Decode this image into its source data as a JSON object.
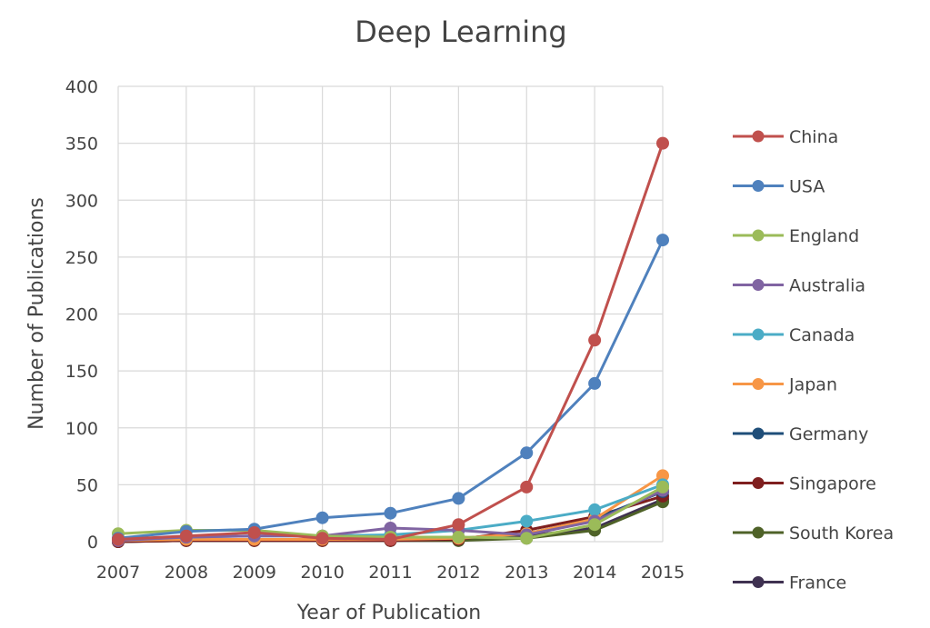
{
  "chart_data": {
    "type": "line",
    "title": "Deep Learning",
    "xlabel": "Year of Publication",
    "ylabel": "Number of Publications",
    "x": [
      "2007",
      "2008",
      "2009",
      "2010",
      "2011",
      "2012",
      "2013",
      "2014",
      "2015"
    ],
    "ylim": [
      0,
      400
    ],
    "yticks": [
      "0",
      "50",
      "100",
      "150",
      "200",
      "250",
      "300",
      "350",
      "400"
    ],
    "grid": true,
    "legend_position": "right",
    "series": [
      {
        "name": "China",
        "color": "#c0504d",
        "values": [
          2,
          5,
          8,
          3,
          2,
          15,
          48,
          177,
          350
        ]
      },
      {
        "name": "USA",
        "color": "#4f81bd",
        "values": [
          3,
          9,
          11,
          21,
          25,
          38,
          78,
          139,
          265
        ]
      },
      {
        "name": "England",
        "color": "#9bbb59",
        "values": [
          7,
          10,
          10,
          5,
          4,
          4,
          3,
          15,
          48
        ]
      },
      {
        "name": "Australia",
        "color": "#8064a2",
        "values": [
          1,
          4,
          5,
          5,
          12,
          10,
          6,
          18,
          45
        ]
      },
      {
        "name": "Canada",
        "color": "#4bacc6",
        "values": [
          2,
          4,
          5,
          5,
          6,
          10,
          18,
          28,
          50
        ]
      },
      {
        "name": "Japan",
        "color": "#f79646",
        "values": [
          1,
          2,
          2,
          2,
          2,
          3,
          7,
          20,
          58
        ]
      },
      {
        "name": "Germany",
        "color": "#1f4e79",
        "values": [
          1,
          2,
          2,
          2,
          2,
          3,
          7,
          20,
          44
        ]
      },
      {
        "name": "Singapore",
        "color": "#7f1f1f",
        "values": [
          0,
          1,
          1,
          1,
          1,
          2,
          10,
          22,
          40
        ]
      },
      {
        "name": "South Korea",
        "color": "#4f6228",
        "values": [
          0,
          1,
          1,
          1,
          1,
          1,
          3,
          10,
          35
        ]
      },
      {
        "name": "France",
        "color": "#3f3151",
        "values": [
          0,
          1,
          1,
          1,
          1,
          1,
          5,
          12,
          37
        ]
      }
    ]
  }
}
